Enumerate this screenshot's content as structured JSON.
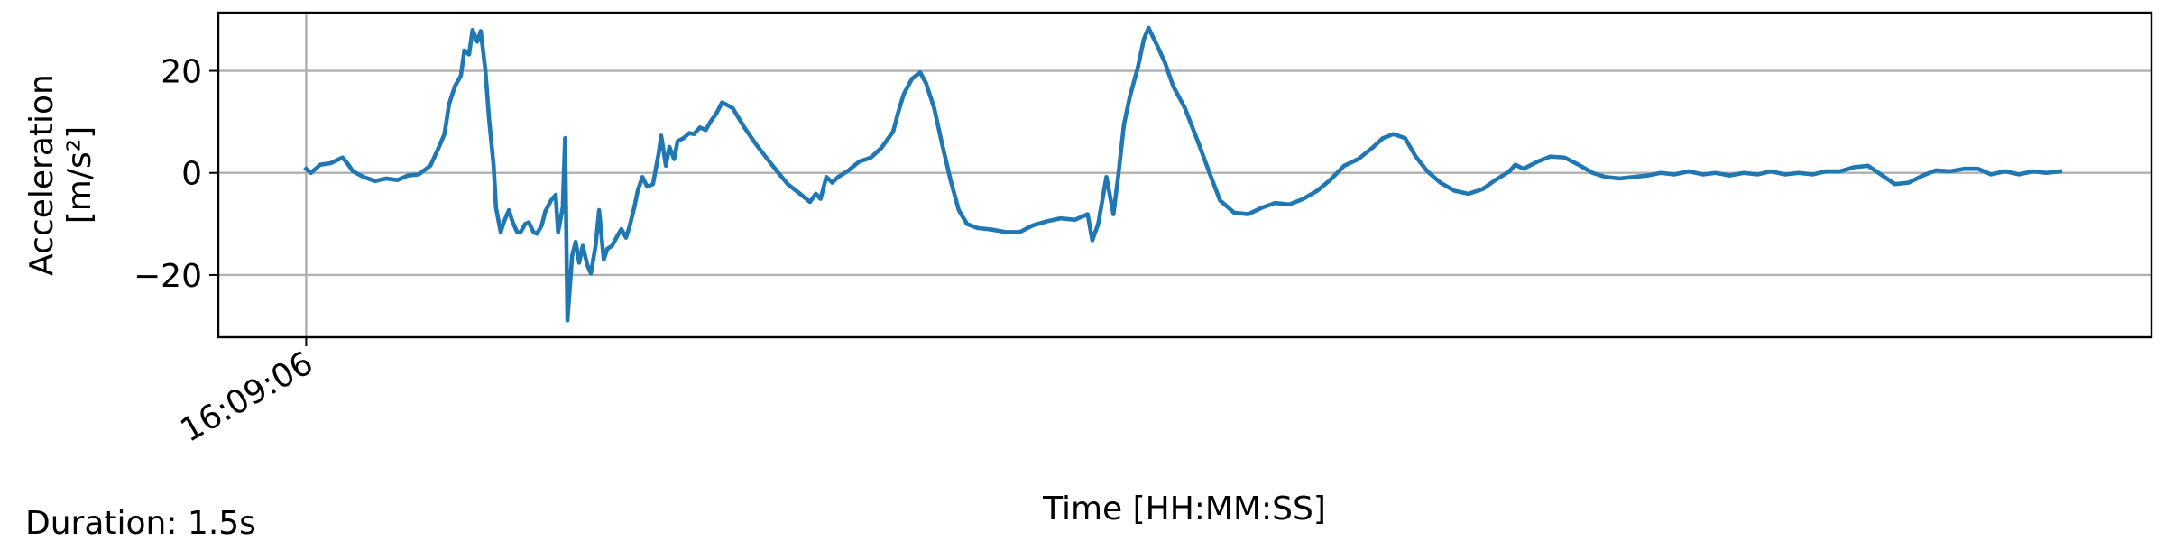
{
  "chart_data": {
    "type": "line",
    "y_label": [
      "Acceleration",
      "[m/s²]"
    ],
    "x_label": "Time [HH:MM:SS]",
    "annotation": "Duration: 1.5s",
    "color": "#1f77b4",
    "grid": true,
    "xlim": [
      -0.075,
      1.575
    ],
    "ylim": [
      -32.2,
      31.4
    ],
    "xticks": [
      {
        "value": 0,
        "label": "16:09:06"
      }
    ],
    "yticks": [
      {
        "value": -20,
        "label": "−20"
      },
      0,
      20
    ],
    "x": [
      0.0,
      0.004,
      0.012,
      0.021,
      0.031,
      0.035,
      0.04,
      0.049,
      0.059,
      0.068,
      0.078,
      0.087,
      0.096,
      0.106,
      0.113,
      0.118,
      0.122,
      0.127,
      0.132,
      0.135,
      0.139,
      0.142,
      0.146,
      0.149,
      0.153,
      0.156,
      0.16,
      0.162,
      0.166,
      0.169,
      0.173,
      0.176,
      0.18,
      0.183,
      0.187,
      0.19,
      0.194,
      0.197,
      0.201,
      0.204,
      0.209,
      0.213,
      0.215,
      0.219,
      0.221,
      0.223,
      0.227,
      0.23,
      0.233,
      0.236,
      0.24,
      0.243,
      0.247,
      0.25,
      0.254,
      0.257,
      0.261,
      0.266,
      0.269,
      0.273,
      0.276,
      0.28,
      0.283,
      0.287,
      0.291,
      0.296,
      0.301,
      0.303,
      0.307,
      0.31,
      0.314,
      0.317,
      0.322,
      0.327,
      0.331,
      0.336,
      0.341,
      0.345,
      0.35,
      0.355,
      0.36,
      0.364,
      0.369,
      0.374,
      0.383,
      0.392,
      0.402,
      0.411,
      0.421,
      0.43,
      0.435,
      0.439,
      0.444,
      0.449,
      0.454,
      0.463,
      0.472,
      0.482,
      0.491,
      0.501,
      0.505,
      0.51,
      0.517,
      0.524,
      0.529,
      0.536,
      0.543,
      0.55,
      0.557,
      0.564,
      0.573,
      0.585,
      0.597,
      0.609,
      0.62,
      0.632,
      0.644,
      0.656,
      0.667,
      0.671,
      0.676,
      0.683,
      0.689,
      0.693,
      0.698,
      0.703,
      0.71,
      0.715,
      0.719,
      0.726,
      0.733,
      0.74,
      0.75,
      0.761,
      0.771,
      0.78,
      0.792,
      0.804,
      0.816,
      0.827,
      0.839,
      0.851,
      0.863,
      0.874,
      0.886,
      0.898,
      0.91,
      0.919,
      0.928,
      0.938,
      0.947,
      0.957,
      0.968,
      0.98,
      0.992,
      1.004,
      1.015,
      1.027,
      1.032,
      1.039,
      1.051,
      1.062,
      1.074,
      1.086,
      1.098,
      1.109,
      1.121,
      1.133,
      1.145,
      1.156,
      1.168,
      1.18,
      1.192,
      1.203,
      1.215,
      1.227,
      1.239,
      1.25,
      1.262,
      1.274,
      1.286,
      1.297,
      1.309,
      1.321,
      1.333,
      1.344,
      1.356,
      1.368,
      1.38,
      1.391,
      1.403,
      1.415,
      1.427,
      1.438,
      1.45,
      1.462,
      1.474,
      1.485,
      1.497
    ],
    "values": [
      0.8,
      0,
      1.6,
      1.9,
      3.0,
      1.9,
      0.3,
      -0.8,
      -1.6,
      -1.1,
      -1.4,
      -0.5,
      -0.3,
      1.4,
      4.9,
      7.6,
      13.5,
      17,
      19,
      24,
      23.2,
      28,
      25.7,
      27.8,
      20,
      10.8,
      1.4,
      -6.8,
      -11.6,
      -9.5,
      -7.3,
      -9.5,
      -11.6,
      -11.6,
      -10,
      -9.7,
      -11.6,
      -11.9,
      -10.3,
      -7.6,
      -5.4,
      -4.3,
      -11.6,
      -6.8,
      6.8,
      -28.9,
      -16.2,
      -13.5,
      -17.6,
      -14.3,
      -18.1,
      -19.7,
      -14.3,
      -7.3,
      -17,
      -14.9,
      -14.3,
      -12.2,
      -11,
      -12.7,
      -10.5,
      -6.8,
      -3.5,
      -0.8,
      -2.7,
      -2.2,
      4,
      7.3,
      1.4,
      5.1,
      2.7,
      6.2,
      6.8,
      7.8,
      7.6,
      8.9,
      8.4,
      10,
      11.6,
      13.8,
      13.2,
      12.7,
      10.8,
      8.9,
      5.9,
      3.2,
      0.3,
      -2.2,
      -4,
      -5.7,
      -4.1,
      -5.1,
      -0.8,
      -1.9,
      -0.8,
      0.5,
      2.2,
      3,
      4.9,
      8.1,
      11.6,
      15.4,
      18.4,
      19.7,
      17.6,
      12.7,
      5.4,
      -1.4,
      -7.3,
      -10,
      -10.8,
      -11.1,
      -11.6,
      -11.6,
      -10.3,
      -9.5,
      -8.9,
      -9.2,
      -8.1,
      -13.2,
      -10,
      -0.8,
      -8.1,
      -0.8,
      9.5,
      14.9,
      20.8,
      26.2,
      28.4,
      25.1,
      21.6,
      17,
      12.7,
      6.2,
      0,
      -5.4,
      -7.8,
      -8.1,
      -6.8,
      -5.9,
      -6.2,
      -5.1,
      -3.5,
      -1.4,
      1.4,
      2.7,
      4.9,
      6.8,
      7.6,
      6.8,
      3.2,
      0.3,
      -1.9,
      -3.5,
      -4.1,
      -3.2,
      -1.4,
      0.3,
      1.6,
      0.8,
      2.2,
      3.2,
      3,
      1.6,
      0,
      -0.8,
      -1.1,
      -0.8,
      -0.5,
      0,
      -0.3,
      0.3,
      -0.3,
      0,
      -0.5,
      0,
      -0.3,
      0.3,
      -0.3,
      0,
      -0.3,
      0.3,
      0.3,
      1.1,
      1.4,
      -0.3,
      -2.2,
      -1.9,
      -0.5,
      0.5,
      0.3,
      0.8,
      0.8,
      -0.3,
      0.3,
      -0.3,
      0.3,
      0,
      0.3
    ]
  }
}
